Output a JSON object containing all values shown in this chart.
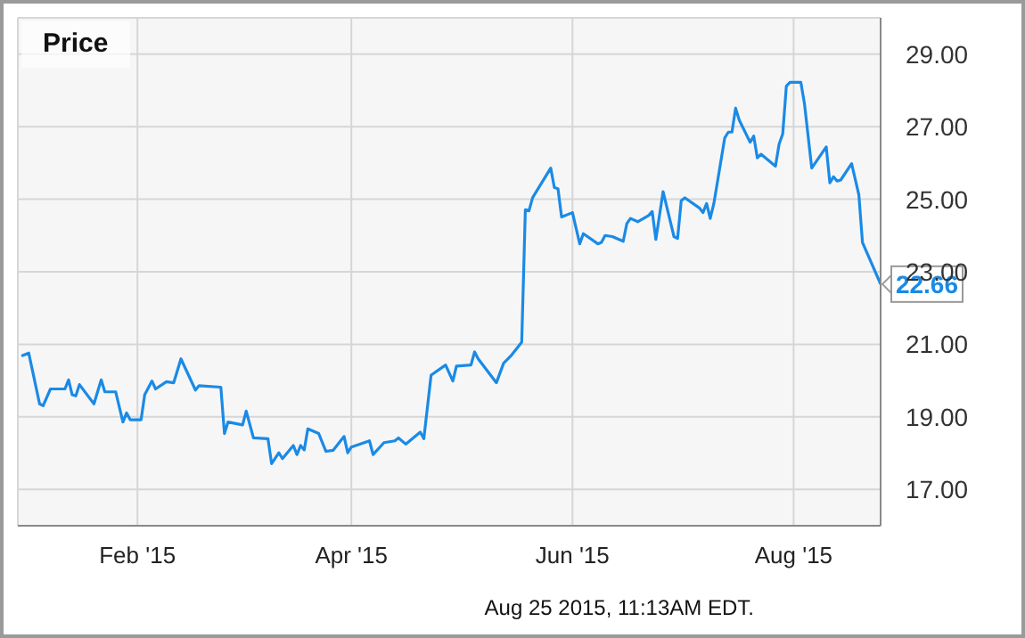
{
  "chart_data": {
    "type": "line",
    "title": "Price",
    "annotations": [
      {
        "text": "22.66",
        "x": "2015-08-25",
        "y": 22.66
      },
      "Aug 25 2015, 11:13AM EDT."
    ],
    "x": [
      "2014-12-31",
      "2015-01-02",
      "2015-01-05",
      "2015-01-06",
      "2015-01-08",
      "2015-01-12",
      "2015-01-13",
      "2015-01-14",
      "2015-01-15",
      "2015-01-16",
      "2015-01-20",
      "2015-01-22",
      "2015-01-23",
      "2015-01-26",
      "2015-01-28",
      "2015-01-29",
      "2015-01-30",
      "2015-02-02",
      "2015-02-03",
      "2015-02-05",
      "2015-02-06",
      "2015-02-09",
      "2015-02-11",
      "2015-02-13",
      "2015-02-17",
      "2015-02-18",
      "2015-02-24",
      "2015-02-25",
      "2015-02-26",
      "2015-03-02",
      "2015-03-03",
      "2015-03-05",
      "2015-03-09",
      "2015-03-10",
      "2015-03-12",
      "2015-03-13",
      "2015-03-16",
      "2015-03-17",
      "2015-03-18",
      "2015-03-19",
      "2015-03-20",
      "2015-03-23",
      "2015-03-25",
      "2015-03-27",
      "2015-03-30",
      "2015-03-31",
      "2015-04-01",
      "2015-04-06",
      "2015-04-07",
      "2015-04-10",
      "2015-04-13",
      "2015-04-14",
      "2015-04-16",
      "2015-04-20",
      "2015-04-21",
      "2015-04-23",
      "2015-04-27",
      "2015-04-29",
      "2015-04-30",
      "2015-05-04",
      "2015-05-05",
      "2015-05-06",
      "2015-05-11",
      "2015-05-13",
      "2015-05-15",
      "2015-05-18",
      "2015-05-19",
      "2015-05-20",
      "2015-05-21",
      "2015-05-26",
      "2015-05-27",
      "2015-05-28",
      "2015-05-29",
      "2015-06-01",
      "2015-06-03",
      "2015-06-04",
      "2015-06-08",
      "2015-06-09",
      "2015-06-10",
      "2015-06-12",
      "2015-06-15",
      "2015-06-16",
      "2015-06-17",
      "2015-06-19",
      "2015-06-22",
      "2015-06-23",
      "2015-06-24",
      "2015-06-26",
      "2015-06-29",
      "2015-06-30",
      "2015-07-01",
      "2015-07-02",
      "2015-07-06",
      "2015-07-07",
      "2015-07-08",
      "2015-07-09",
      "2015-07-10",
      "2015-07-13",
      "2015-07-14",
      "2015-07-15",
      "2015-07-16",
      "2015-07-17",
      "2015-07-20",
      "2015-07-21",
      "2015-07-22",
      "2015-07-23",
      "2015-07-27",
      "2015-07-28",
      "2015-07-29",
      "2015-07-30",
      "2015-07-31",
      "2015-08-03",
      "2015-08-04",
      "2015-08-06",
      "2015-08-10",
      "2015-08-11",
      "2015-08-12",
      "2015-08-13",
      "2015-08-14",
      "2015-08-17",
      "2015-08-19",
      "2015-08-20",
      "2015-08-25"
    ],
    "series": [
      {
        "color": "#1a8ae6",
        "values": [
          20.68,
          20.76,
          19.36,
          19.31,
          19.77,
          19.77,
          20.02,
          19.61,
          19.58,
          19.89,
          19.36,
          20.02,
          19.69,
          19.69,
          18.86,
          19.11,
          18.92,
          18.92,
          19.61,
          19.99,
          19.77,
          19.97,
          19.94,
          20.6,
          19.74,
          19.86,
          19.82,
          18.54,
          18.86,
          18.78,
          19.16,
          18.42,
          18.4,
          17.71,
          18.01,
          17.85,
          18.21,
          17.96,
          18.21,
          18.09,
          18.67,
          18.54,
          18.05,
          18.08,
          18.46,
          18.01,
          18.17,
          18.34,
          17.96,
          18.29,
          18.34,
          18.42,
          18.25,
          18.58,
          18.4,
          20.15,
          20.43,
          19.99,
          20.4,
          20.43,
          20.79,
          20.6,
          19.94,
          20.48,
          20.68,
          21.06,
          24.71,
          24.68,
          25.04,
          25.86,
          25.32,
          25.29,
          24.51,
          24.63,
          23.77,
          24.05,
          23.77,
          23.81,
          24.0,
          23.97,
          23.84,
          24.33,
          24.47,
          24.38,
          24.55,
          24.66,
          23.89,
          25.21,
          23.97,
          23.92,
          24.96,
          25.04,
          24.76,
          24.63,
          24.88,
          24.47,
          24.88,
          26.69,
          26.85,
          26.85,
          27.51,
          27.18,
          26.57,
          26.74,
          26.14,
          26.24,
          25.91,
          26.52,
          26.8,
          28.12,
          28.22,
          28.22,
          27.63,
          25.86,
          26.44,
          25.45,
          25.62,
          25.5,
          25.53,
          25.98,
          25.12,
          23.81,
          22.66
        ]
      }
    ],
    "xlim": [
      "2014-12-30",
      "2015-08-25"
    ],
    "ylim": [
      16,
      30
    ],
    "xticks": [
      {
        "value": "2015-02-01",
        "label": "Feb '15"
      },
      {
        "value": "2015-04-01",
        "label": "Apr '15"
      },
      {
        "value": "2015-06-01",
        "label": "Jun '15"
      },
      {
        "value": "2015-08-01",
        "label": "Aug '15"
      }
    ],
    "yticks": [
      {
        "value": 17,
        "label": "17.00"
      },
      {
        "value": 19,
        "label": "19.00"
      },
      {
        "value": 21,
        "label": "21.00"
      },
      {
        "value": 23,
        "label": "23.00"
      },
      {
        "value": 25,
        "label": "25.00"
      },
      {
        "value": 27,
        "label": "27.00"
      },
      {
        "value": 29,
        "label": "29.00"
      }
    ],
    "grid": true,
    "legend": false
  }
}
